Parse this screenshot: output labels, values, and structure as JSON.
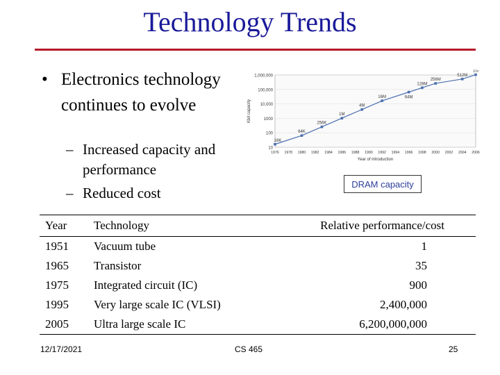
{
  "slide": {
    "title": "Technology Trends",
    "bullet": "Electronics technology continues to evolve",
    "subs": [
      "Increased capacity and performance",
      "Reduced cost"
    ],
    "chart_caption": "DRAM capacity",
    "footer": {
      "date": "12/17/2021",
      "course": "CS 465",
      "page": "25"
    }
  },
  "table": {
    "headers": [
      "Year",
      "Technology",
      "Relative performance/cost"
    ],
    "rows": [
      [
        "1951",
        "Vacuum tube",
        "1"
      ],
      [
        "1965",
        "Transistor",
        "35"
      ],
      [
        "1975",
        "Integrated circuit (IC)",
        "900"
      ],
      [
        "1995",
        "Very large scale IC (VLSI)",
        "2,400,000"
      ],
      [
        "2005",
        "Ultra large scale IC",
        "6,200,000,000"
      ]
    ]
  },
  "chart_data": {
    "type": "line",
    "xlabel": "Year of introduction",
    "ylabel": "Kbit capacity",
    "scale": "log",
    "ylim": [
      10,
      1000000
    ],
    "xlim": [
      1976,
      2006
    ],
    "yticks": [
      "1,000,000",
      "100,000",
      "10,000",
      "1000",
      "100",
      "10"
    ],
    "xticks": [
      "1976",
      "1978",
      "1980",
      "1982",
      "1984",
      "1986",
      "1988",
      "1990",
      "1992",
      "1994",
      "1996",
      "1998",
      "2000",
      "2002",
      "2004",
      "2006"
    ],
    "points": [
      {
        "x": 1976,
        "y": 16,
        "label": "16K"
      },
      {
        "x": 1980,
        "y": 64,
        "label": "64K"
      },
      {
        "x": 1983,
        "y": 256,
        "label": "256K"
      },
      {
        "x": 1986,
        "y": 1024,
        "label": "1M"
      },
      {
        "x": 1989,
        "y": 4096,
        "label": "4M"
      },
      {
        "x": 1992,
        "y": 16384,
        "label": "16M"
      },
      {
        "x": 1996,
        "y": 65536,
        "label": "64M"
      },
      {
        "x": 1998,
        "y": 131072,
        "label": "128M"
      },
      {
        "x": 2000,
        "y": 262144,
        "label": "256M"
      },
      {
        "x": 2004,
        "y": 524288,
        "label": "512M"
      },
      {
        "x": 2006,
        "y": 1048576,
        "label": "1G"
      }
    ],
    "color": "#4a6fb0"
  }
}
